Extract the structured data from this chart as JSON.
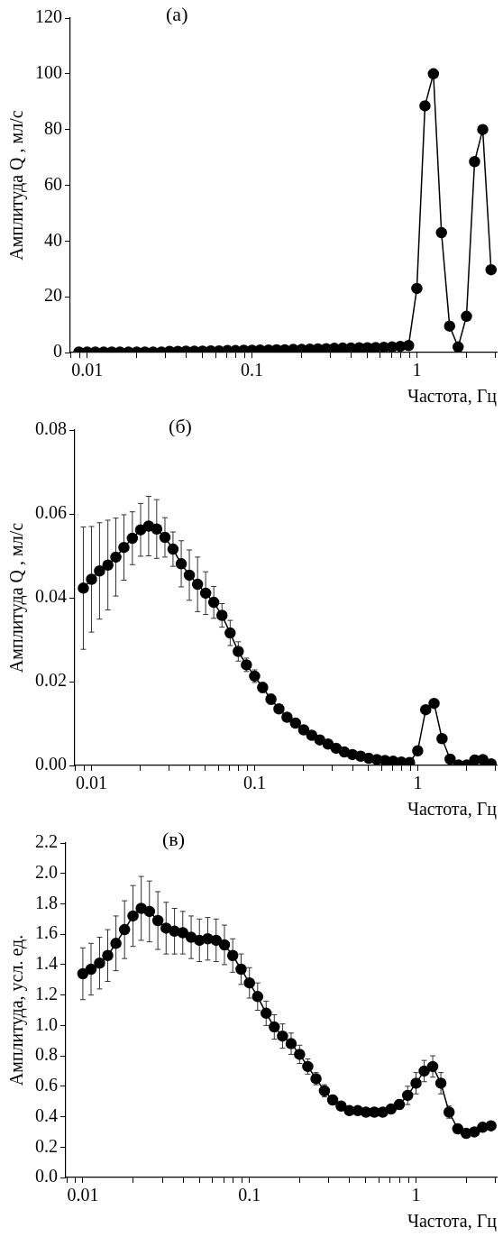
{
  "chart_data": [
    {
      "type": "line",
      "title": "(а)",
      "xlabel": "Частота, Гц",
      "ylabel": "Амплитуда Q , мл/с",
      "log": "x",
      "marker": "circle",
      "line_style": "solid",
      "xlim": [
        0.0079,
        3.05
      ],
      "ylim": [
        0,
        120
      ],
      "xticks": [
        {
          "value": 0.008,
          "label": null
        },
        {
          "value": 0.009,
          "label": null
        },
        0.01,
        {
          "value": 0.02,
          "label": null
        },
        {
          "value": 0.03,
          "label": null
        },
        {
          "value": 0.04,
          "label": null
        },
        {
          "value": 0.05,
          "label": null
        },
        {
          "value": 0.06,
          "label": null
        },
        {
          "value": 0.07,
          "label": null
        },
        {
          "value": 0.08,
          "label": null
        },
        {
          "value": 0.09,
          "label": null
        },
        0.1,
        {
          "value": 0.2,
          "label": null
        },
        {
          "value": 0.3,
          "label": null
        },
        {
          "value": 0.4,
          "label": null
        },
        {
          "value": 0.5,
          "label": null
        },
        {
          "value": 0.6,
          "label": null
        },
        {
          "value": 0.7,
          "label": null
        },
        {
          "value": 0.8,
          "label": null
        },
        {
          "value": 0.9,
          "label": null
        },
        1,
        {
          "value": 2,
          "label": null
        },
        {
          "value": 3,
          "label": null
        }
      ],
      "yticks": [
        0,
        20,
        40,
        60,
        80,
        100,
        120
      ],
      "x": [
        0.00891,
        0.01,
        0.0112,
        0.0126,
        0.0141,
        0.0158,
        0.0178,
        0.02,
        0.0224,
        0.0251,
        0.0282,
        0.0316,
        0.0355,
        0.0398,
        0.0447,
        0.0501,
        0.0562,
        0.0631,
        0.0708,
        0.0794,
        0.0891,
        0.1,
        0.112,
        0.126,
        0.141,
        0.158,
        0.178,
        0.2,
        0.224,
        0.251,
        0.282,
        0.316,
        0.355,
        0.398,
        0.447,
        0.501,
        0.562,
        0.631,
        0.708,
        0.794,
        0.891,
        1,
        1.12,
        1.26,
        1.41,
        1.58,
        1.78,
        2,
        2.24,
        2.51,
        2.82
      ],
      "series": [
        {
          "color": "#000000",
          "values": [
            0.2,
            0.2,
            0.2,
            0.2,
            0.2,
            0.2,
            0.2,
            0.2,
            0.2,
            0.2,
            0.2,
            0.4,
            0.4,
            0.5,
            0.5,
            0.5,
            0.6,
            0.6,
            0.7,
            0.7,
            0.8,
            0.8,
            0.9,
            0.9,
            1,
            1,
            1.1,
            1.1,
            1.2,
            1.3,
            1.4,
            1.5,
            1.6,
            1.6,
            1.7,
            1.7,
            1.8,
            1.9,
            2,
            2.2,
            2.5,
            23,
            88.5,
            100,
            43,
            9.5,
            2,
            13,
            68.5,
            80,
            29.7
          ]
        }
      ]
    },
    {
      "type": "line",
      "title": "(б)",
      "xlabel": "Частота, Гц",
      "ylabel": "Амплитуда Q , мл/с",
      "log": "x",
      "marker": "circle",
      "line_style": "solid",
      "xlim": [
        0.0079,
        3.05
      ],
      "ylim": [
        0,
        0.08
      ],
      "xticks": [
        {
          "value": 0.008,
          "label": null
        },
        {
          "value": 0.009,
          "label": null
        },
        0.01,
        {
          "value": 0.02,
          "label": null
        },
        {
          "value": 0.03,
          "label": null
        },
        {
          "value": 0.04,
          "label": null
        },
        {
          "value": 0.05,
          "label": null
        },
        {
          "value": 0.06,
          "label": null
        },
        {
          "value": 0.07,
          "label": null
        },
        {
          "value": 0.08,
          "label": null
        },
        {
          "value": 0.09,
          "label": null
        },
        0.1,
        {
          "value": 0.2,
          "label": null
        },
        {
          "value": 0.3,
          "label": null
        },
        {
          "value": 0.4,
          "label": null
        },
        {
          "value": 0.5,
          "label": null
        },
        {
          "value": 0.6,
          "label": null
        },
        {
          "value": 0.7,
          "label": null
        },
        {
          "value": 0.8,
          "label": null
        },
        {
          "value": 0.9,
          "label": null
        },
        1,
        {
          "value": 2,
          "label": null
        },
        {
          "value": 3,
          "label": null
        }
      ],
      "yticks": [
        {
          "value": 0,
          "label": "0.00"
        },
        0.02,
        0.04,
        0.06,
        0.08
      ],
      "x": [
        0.00891,
        0.01,
        0.0112,
        0.0126,
        0.0141,
        0.0158,
        0.0178,
        0.02,
        0.0224,
        0.0251,
        0.0282,
        0.0316,
        0.0355,
        0.0398,
        0.0447,
        0.0501,
        0.0562,
        0.0631,
        0.0708,
        0.0794,
        0.0891,
        0.1,
        0.112,
        0.126,
        0.141,
        0.158,
        0.178,
        0.2,
        0.224,
        0.251,
        0.282,
        0.316,
        0.355,
        0.398,
        0.447,
        0.501,
        0.562,
        0.631,
        0.708,
        0.794,
        0.891,
        1,
        1.12,
        1.26,
        1.41,
        1.58,
        1.78,
        2,
        2.24,
        2.51,
        2.82
      ],
      "series": [
        {
          "color": "#000000",
          "values": [
            0.0423,
            0.0444,
            0.0464,
            0.0478,
            0.0497,
            0.052,
            0.0542,
            0.0562,
            0.0571,
            0.0564,
            0.0544,
            0.0516,
            0.0481,
            0.0454,
            0.0432,
            0.0411,
            0.0389,
            0.0358,
            0.0316,
            0.0272,
            0.024,
            0.0213,
            0.0186,
            0.0158,
            0.0135,
            0.0115,
            0.0101,
            0.0085,
            0.0072,
            0.0061,
            0.0051,
            0.0041,
            0.0032,
            0.0026,
            0.0022,
            0.0017,
            0.0014,
            0.0012,
            0.001,
            0.0008,
            0.0007,
            0.0035,
            0.0133,
            0.0148,
            0.0064,
            0.0015,
            0.0001,
            0.0001,
            0.0013,
            0.0014,
            0.0004
          ],
          "errors": [
            0.0146,
            0.0126,
            0.0115,
            0.0107,
            0.0093,
            0.0078,
            0.0063,
            0.0063,
            0.0071,
            0.007,
            0.0047,
            0.0041,
            0.0055,
            0.006,
            0.0065,
            0.0051,
            0.0038,
            0.0028,
            0.003,
            0.0023,
            0.0016,
            0.0015,
            0.0012,
            0.0012,
            null,
            null,
            null,
            null,
            null,
            null,
            null,
            null,
            null,
            null,
            null,
            null,
            null,
            null,
            null,
            null,
            null,
            null,
            null,
            null,
            null,
            null,
            null,
            null,
            null,
            null,
            null
          ]
        }
      ]
    },
    {
      "type": "line",
      "title": "(в)",
      "xlabel": "Частота, Гц",
      "ylabel": "Амплитуда, усл. ед.",
      "log": "x",
      "marker": "circle",
      "line_style": "solid",
      "xlim": [
        0.0079,
        3.05
      ],
      "ylim": [
        0,
        2.2
      ],
      "xticks": [
        {
          "value": 0.008,
          "label": null
        },
        {
          "value": 0.009,
          "label": null
        },
        0.01,
        {
          "value": 0.02,
          "label": null
        },
        {
          "value": 0.03,
          "label": null
        },
        {
          "value": 0.04,
          "label": null
        },
        {
          "value": 0.05,
          "label": null
        },
        {
          "value": 0.06,
          "label": null
        },
        {
          "value": 0.07,
          "label": null
        },
        {
          "value": 0.08,
          "label": null
        },
        {
          "value": 0.09,
          "label": null
        },
        0.1,
        {
          "value": 0.2,
          "label": null
        },
        {
          "value": 0.3,
          "label": null
        },
        {
          "value": 0.4,
          "label": null
        },
        {
          "value": 0.5,
          "label": null
        },
        {
          "value": 0.6,
          "label": null
        },
        {
          "value": 0.7,
          "label": null
        },
        {
          "value": 0.8,
          "label": null
        },
        {
          "value": 0.9,
          "label": null
        },
        1,
        {
          "value": 2,
          "label": null
        },
        {
          "value": 3,
          "label": null
        }
      ],
      "yticks": [
        {
          "value": 0,
          "label": "0.0"
        },
        0.2,
        0.4,
        0.6,
        0.8,
        {
          "value": 1,
          "label": "1.0"
        },
        1.2,
        1.4,
        1.6,
        1.8,
        {
          "value": 2,
          "label": "2.0"
        },
        2.2
      ],
      "x": [
        0.01,
        0.0112,
        0.0126,
        0.0141,
        0.0158,
        0.0178,
        0.02,
        0.0224,
        0.0251,
        0.0282,
        0.0316,
        0.0355,
        0.0398,
        0.0447,
        0.0501,
        0.0562,
        0.0631,
        0.0708,
        0.0794,
        0.0891,
        0.1,
        0.112,
        0.126,
        0.141,
        0.158,
        0.178,
        0.2,
        0.224,
        0.251,
        0.282,
        0.316,
        0.355,
        0.398,
        0.447,
        0.501,
        0.562,
        0.631,
        0.708,
        0.794,
        0.891,
        1,
        1.12,
        1.26,
        1.41,
        1.58,
        1.78,
        2,
        2.24,
        2.51,
        2.82
      ],
      "series": [
        {
          "color": "#000000",
          "values": [
            1.34,
            1.37,
            1.41,
            1.46,
            1.54,
            1.63,
            1.72,
            1.77,
            1.75,
            1.69,
            1.64,
            1.62,
            1.61,
            1.58,
            1.56,
            1.57,
            1.56,
            1.53,
            1.46,
            1.37,
            1.28,
            1.19,
            1.08,
            0.99,
            0.93,
            0.88,
            0.81,
            0.73,
            0.65,
            0.57,
            0.51,
            0.47,
            0.44,
            0.44,
            0.43,
            0.43,
            0.43,
            0.45,
            0.48,
            0.54,
            0.62,
            0.7,
            0.73,
            0.62,
            0.43,
            0.32,
            0.29,
            0.3,
            0.33,
            0.34
          ],
          "errors": [
            0.17,
            0.17,
            0.17,
            0.17,
            0.18,
            0.19,
            0.2,
            0.21,
            0.2,
            0.19,
            0.17,
            0.15,
            0.14,
            0.14,
            0.14,
            0.14,
            0.14,
            0.13,
            0.11,
            0.1,
            0.1,
            0.09,
            0.08,
            0.08,
            0.08,
            0.07,
            0.06,
            0.05,
            0.04,
            0.04,
            0.03,
            null,
            null,
            null,
            null,
            null,
            null,
            null,
            0.03,
            0.06,
            0.07,
            0.07,
            0.07,
            0.07,
            0.04,
            null,
            null,
            null,
            null,
            null
          ]
        }
      ]
    }
  ]
}
